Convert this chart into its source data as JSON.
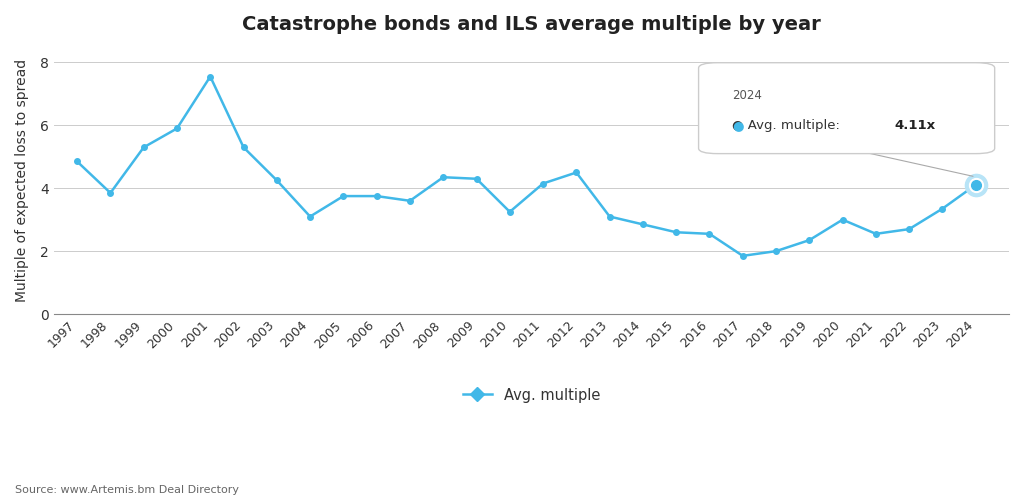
{
  "years": [
    1997,
    1998,
    1999,
    2000,
    2001,
    2002,
    2003,
    2004,
    2005,
    2006,
    2007,
    2008,
    2009,
    2010,
    2011,
    2012,
    2013,
    2014,
    2015,
    2016,
    2017,
    2018,
    2019,
    2020,
    2021,
    2022,
    2023,
    2024
  ],
  "values": [
    4.85,
    3.85,
    5.3,
    5.9,
    7.55,
    5.3,
    4.25,
    3.1,
    3.75,
    3.75,
    3.6,
    4.35,
    4.3,
    3.25,
    4.15,
    4.5,
    3.1,
    2.85,
    2.6,
    2.55,
    1.85,
    2.0,
    2.35,
    3.0,
    2.55,
    2.7,
    3.35,
    4.11
  ],
  "highlight_year": 2024,
  "highlight_value": 4.11,
  "title": "Catastrophe bonds and ILS average multiple by year",
  "ylabel": "Multiple of expected loss to spread",
  "legend_label": "Avg. multiple",
  "source": "Source: www.Artemis.bm Deal Directory",
  "line_color": "#41B8E8",
  "marker_color": "#41B8E8",
  "background_color": "#FFFFFF",
  "grid_color": "#CCCCCC",
  "ylim": [
    0,
    8.5
  ],
  "yticks": [
    0,
    2,
    4,
    6,
    8
  ],
  "tooltip_year": "2024",
  "tooltip_normal": "Avg. multiple: ",
  "tooltip_bold": "4.11x",
  "title_fontsize": 14,
  "axis_fontsize": 9,
  "ylabel_fontsize": 10
}
